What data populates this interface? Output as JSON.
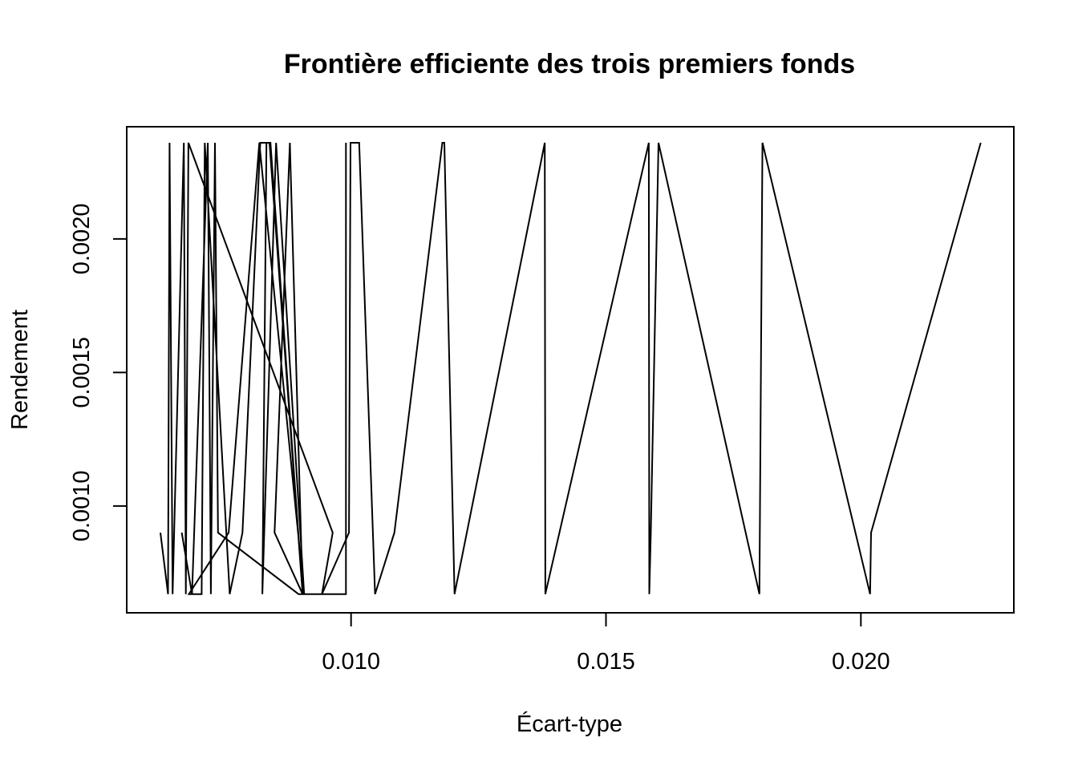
{
  "chart_data": {
    "type": "line",
    "title": "Frontière efficiente des trois premiers fonds",
    "xlabel": "Écart-type",
    "ylabel": "Rendement",
    "xlim": [
      0.0056,
      0.023
    ],
    "ylim": [
      0.0006,
      0.00242
    ],
    "xticks": [
      0.01,
      0.015,
      0.02
    ],
    "xtick_labels": [
      "0.010",
      "0.015",
      "0.020"
    ],
    "yticks": [
      0.001,
      0.0015,
      0.002
    ],
    "ytick_labels": [
      "0.0010",
      "0.0015",
      "0.0020"
    ],
    "grid": false,
    "legend": "none",
    "series": [
      {
        "color": "#000000",
        "points": [
          [
            0.00626,
            0.0009
          ],
          [
            0.00641,
            0.00067
          ],
          [
            0.00644,
            0.00236
          ],
          [
            0.0065,
            0.00067
          ],
          [
            0.00672,
            0.00236
          ],
          [
            0.00676,
            0.00067
          ],
          [
            0.00681,
            0.00236
          ],
          [
            0.00964,
            0.0009
          ],
          [
            0.00943,
            0.00067
          ],
          [
            0.00996,
            0.0009
          ],
          [
            0.00999,
            0.00236
          ],
          [
            0.01016,
            0.00236
          ],
          [
            0.01047,
            0.00067
          ],
          [
            0.01085,
            0.0009
          ],
          [
            0.01179,
            0.00236
          ],
          [
            0.01183,
            0.00236
          ],
          [
            0.01203,
            0.00067
          ],
          [
            0.0138,
            0.00236
          ],
          [
            0.01381,
            0.00067
          ],
          [
            0.01584,
            0.00236
          ],
          [
            0.01585,
            0.00067
          ],
          [
            0.01588,
            0.0009
          ],
          [
            0.01603,
            0.00236
          ],
          [
            0.01801,
            0.00067
          ],
          [
            0.01807,
            0.00236
          ],
          [
            0.02018,
            0.00067
          ],
          [
            0.0202,
            0.0009
          ],
          [
            0.02235,
            0.00236
          ]
        ]
      },
      {
        "color": "#000000",
        "points": [
          [
            0.00668,
            0.0009
          ],
          [
            0.00688,
            0.00067
          ],
          [
            0.00719,
            0.00236
          ],
          [
            0.00725,
            0.00067
          ],
          [
            0.00733,
            0.00236
          ],
          [
            0.00739,
            0.0009
          ],
          [
            0.00897,
            0.00067
          ],
          [
            0.00908,
            0.00067
          ],
          [
            0.00853,
            0.00236
          ],
          [
            0.00826,
            0.00067
          ],
          [
            0.00834,
            0.00236
          ],
          [
            0.00842,
            0.00236
          ],
          [
            0.00905,
            0.00067
          ],
          [
            0.0088,
            0.00236
          ],
          [
            0.0085,
            0.0009
          ],
          [
            0.00905,
            0.00067
          ],
          [
            0.0084,
            0.00236
          ],
          [
            0.00822,
            0.00236
          ],
          [
            0.00787,
            0.0009
          ],
          [
            0.00762,
            0.00067
          ],
          [
            0.00713,
            0.00236
          ],
          [
            0.00707,
            0.00067
          ],
          [
            0.00682,
            0.00067
          ],
          [
            0.0076,
            0.0009
          ],
          [
            0.0082,
            0.00236
          ],
          [
            0.00908,
            0.00067
          ],
          [
            0.0099,
            0.00067
          ],
          [
            0.0099,
            0.00236
          ]
        ]
      }
    ]
  }
}
